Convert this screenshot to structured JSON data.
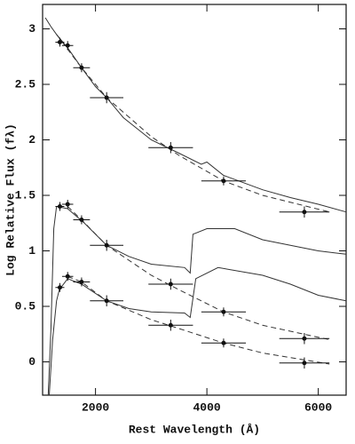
{
  "chart_data": {
    "type": "scatter",
    "xlabel": "Rest Wavelength (Å)",
    "ylabel": "Log Relative Flux (fλ)",
    "xlim": [
      1050,
      6500
    ],
    "ylim": [
      -0.3,
      3.22
    ],
    "xticks": [
      2000,
      4000,
      6000
    ],
    "yticks": [
      0,
      0.5,
      1,
      1.5,
      2,
      2.5,
      3
    ],
    "series": [
      {
        "style": "solid",
        "color": "#333333",
        "x": [
          1100,
          1200,
          1300,
          1500,
          1750,
          2000,
          2200,
          2500,
          3000,
          3500,
          3900,
          4000,
          4300,
          5000,
          5500,
          6000,
          6500
        ],
        "values": [
          3.1,
          3.02,
          2.95,
          2.83,
          2.65,
          2.48,
          2.38,
          2.2,
          2.0,
          1.88,
          1.78,
          1.8,
          1.68,
          1.55,
          1.48,
          1.42,
          1.35
        ]
      },
      {
        "style": "dashed",
        "color": "#333333",
        "x": [
          1300,
          1750,
          2200,
          3000,
          3500,
          4300,
          5000,
          6200
        ],
        "values": [
          2.95,
          2.65,
          2.38,
          2.03,
          1.86,
          1.63,
          1.5,
          1.35
        ]
      },
      {
        "style": "solid",
        "color": "#333333",
        "x": [
          1150,
          1200,
          1250,
          1300,
          1500,
          1800,
          2200,
          2600,
          3000,
          3600,
          3700,
          3750,
          4000,
          4500,
          5000,
          5500,
          6000,
          6500
        ],
        "values": [
          -0.3,
          0.3,
          1.2,
          1.4,
          1.38,
          1.25,
          1.05,
          0.95,
          0.88,
          0.85,
          0.8,
          1.15,
          1.2,
          1.2,
          1.1,
          1.05,
          1.0,
          0.97
        ]
      },
      {
        "style": "dashed",
        "color": "#333333",
        "x": [
          1500,
          1750,
          2200,
          3000,
          3500,
          4300,
          5000,
          6200
        ],
        "values": [
          1.4,
          1.28,
          1.05,
          0.78,
          0.65,
          0.45,
          0.33,
          0.2
        ]
      },
      {
        "style": "solid",
        "color": "#333333",
        "x": [
          1170,
          1230,
          1300,
          1350,
          1500,
          1750,
          2200,
          2600,
          3000,
          3600,
          3700,
          3800,
          4200,
          5000,
          5500,
          6000,
          6500
        ],
        "values": [
          -0.3,
          0.2,
          0.55,
          0.65,
          0.75,
          0.7,
          0.55,
          0.48,
          0.45,
          0.44,
          0.4,
          0.75,
          0.85,
          0.78,
          0.7,
          0.6,
          0.55
        ]
      },
      {
        "style": "dashed",
        "color": "#333333",
        "x": [
          1500,
          1750,
          2200,
          3000,
          3500,
          4300,
          5000,
          6200
        ],
        "values": [
          0.77,
          0.72,
          0.55,
          0.38,
          0.3,
          0.17,
          0.08,
          -0.02
        ]
      },
      {
        "style": "points",
        "color": "#111111",
        "x": [
          1360,
          1500,
          1750,
          2200,
          3350,
          4300,
          5750
        ],
        "values": [
          2.88,
          2.85,
          2.65,
          2.38,
          1.93,
          1.63,
          1.35
        ],
        "xerr": [
          80,
          100,
          150,
          300,
          400,
          400,
          450
        ],
        "yerr": [
          0.04,
          0.04,
          0.04,
          0.05,
          0.05,
          0.04,
          0.05
        ]
      },
      {
        "style": "points",
        "color": "#111111",
        "x": [
          1360,
          1500,
          1750,
          2200,
          3350,
          4300,
          5750
        ],
        "values": [
          1.4,
          1.42,
          1.28,
          1.05,
          0.7,
          0.45,
          0.21
        ],
        "xerr": [
          80,
          100,
          150,
          300,
          400,
          400,
          450
        ],
        "yerr": [
          0.04,
          0.04,
          0.04,
          0.05,
          0.05,
          0.04,
          0.05
        ]
      },
      {
        "style": "points",
        "color": "#111111",
        "x": [
          1360,
          1500,
          1750,
          2200,
          3350,
          4300,
          5750
        ],
        "values": [
          0.67,
          0.77,
          0.72,
          0.55,
          0.33,
          0.17,
          -0.01
        ],
        "xerr": [
          80,
          100,
          150,
          300,
          400,
          400,
          450
        ],
        "yerr": [
          0.04,
          0.04,
          0.04,
          0.05,
          0.05,
          0.04,
          0.05
        ]
      }
    ]
  }
}
